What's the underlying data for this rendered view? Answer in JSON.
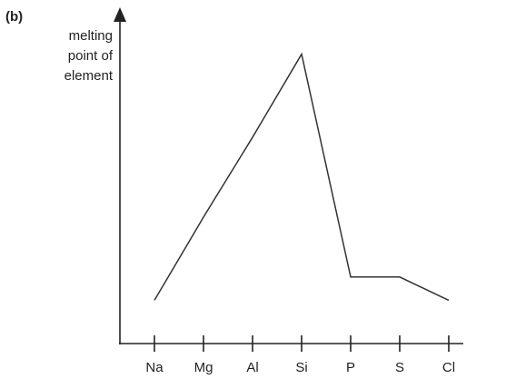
{
  "chart_data": {
    "type": "line",
    "label": "(b)",
    "ylabel": [
      "melting",
      "point of",
      "element"
    ],
    "categories": [
      "Na",
      "Mg",
      "Al",
      "Si",
      "P",
      "S",
      "Cl"
    ],
    "values": [
      13,
      38,
      62,
      87,
      20,
      20,
      13
    ],
    "color": "#333333",
    "ylim": [
      0,
      100
    ]
  }
}
